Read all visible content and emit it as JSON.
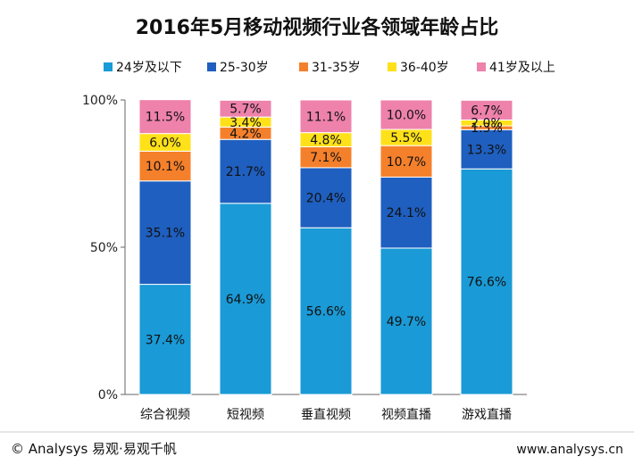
{
  "chart_data": {
    "type": "bar",
    "stacked": true,
    "title": "2016年5月移动视频行业各领域年龄占比",
    "categories": [
      "综合视频",
      "短视频",
      "垂直视频",
      "视频直播",
      "游戏直播"
    ],
    "series": [
      {
        "name": "24岁及以下",
        "color": "#1a9ad6",
        "values": [
          37.4,
          64.9,
          56.6,
          49.7,
          76.6
        ],
        "labels": [
          "37.4%",
          "64.9%",
          "56.6%",
          "49.7%",
          "76.6%"
        ]
      },
      {
        "name": "25-30岁",
        "color": "#1f5fbf",
        "values": [
          35.1,
          21.7,
          20.4,
          24.1,
          13.3
        ],
        "labels": [
          "35.1%",
          "21.7%",
          "20.4%",
          "24.1%",
          "13.3%"
        ]
      },
      {
        "name": "31-35岁",
        "color": "#f5802b",
        "values": [
          10.1,
          4.2,
          7.1,
          10.7,
          1.3
        ],
        "labels": [
          "10.1%",
          "4.2%",
          "7.1%",
          "10.7%",
          "1.3%"
        ]
      },
      {
        "name": "36-40岁",
        "color": "#ffe11a",
        "values": [
          6.0,
          3.4,
          4.8,
          5.5,
          2.0
        ],
        "labels": [
          "6.0%",
          "3.4%",
          "4.8%",
          "5.5%",
          "2.0%"
        ]
      },
      {
        "name": "41岁及以上",
        "color": "#ee82ab",
        "values": [
          11.5,
          5.7,
          11.1,
          10.0,
          6.7
        ],
        "labels": [
          "11.5%",
          "5.7%",
          "11.1%",
          "10.0%",
          "6.7%"
        ]
      }
    ],
    "ylim": [
      0,
      100
    ],
    "yticks": [
      0,
      50,
      100
    ],
    "ytick_labels": [
      "0%",
      "50%",
      "100%"
    ],
    "legend_position": "top",
    "grid": false
  },
  "footer": {
    "left": "© Analysys 易观·易观千帆",
    "right": "www.analysys.cn"
  }
}
